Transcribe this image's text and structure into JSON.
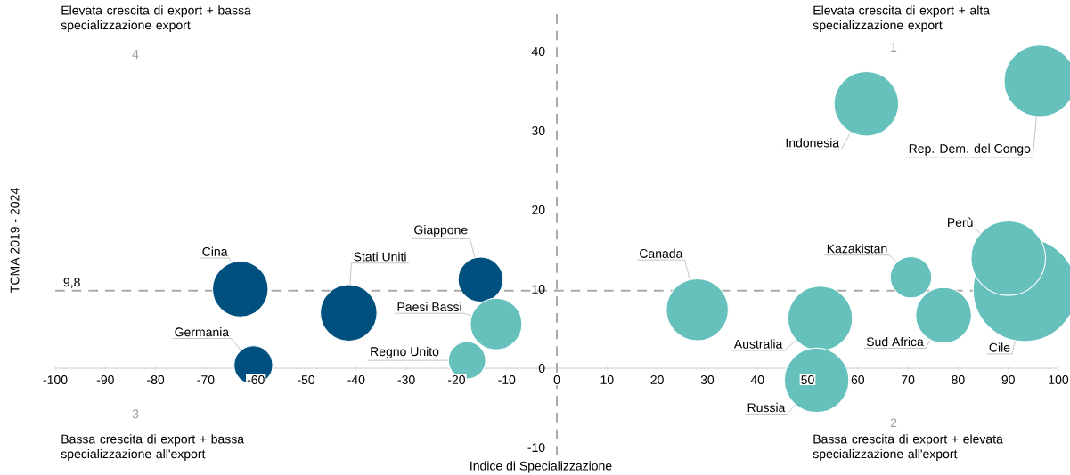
{
  "chart_data": {
    "type": "bubble",
    "xlabel": "Indice di Specializzazione",
    "ylabel": "TCMA 2019 - 2024",
    "xlim": [
      -100,
      100
    ],
    "ylim": [
      -11,
      45
    ],
    "xticks": [
      -100,
      -90,
      -80,
      -70,
      -60,
      -50,
      -40,
      -30,
      -20,
      -10,
      0,
      10,
      20,
      30,
      40,
      50,
      60,
      70,
      80,
      90,
      100
    ],
    "yticks": [
      -10,
      0,
      10,
      20,
      30,
      40
    ],
    "series": [
      {
        "color": "#00507f",
        "x": [
          -63.1,
          -60.5,
          -41.5,
          -15.2
        ],
        "values": [
          10.0,
          0.4,
          7.0,
          11.2
        ],
        "sizes": [
          0.29,
          0.14,
          0.3,
          0.19
        ]
      },
      {
        "color": "#66c0bc",
        "x": [
          -12.1,
          -17.9,
          28,
          52.5,
          51.8,
          70.6,
          77.1,
          93.3,
          90,
          61.7,
          96.3
        ],
        "values": [
          5.6,
          1.0,
          7.4,
          6.3,
          -1.5,
          11.5,
          6.7,
          9.9,
          13.9,
          33.4,
          36.3
        ],
        "sizes": [
          0.25,
          0.13,
          0.36,
          0.39,
          0.39,
          0.16,
          0.29,
          1,
          0.52,
          0.39,
          0.48
        ]
      }
    ],
    "ref_lines": [
      {
        "axis": "y",
        "value": 9.8,
        "label": "9,8",
        "color": "#aaaaaa",
        "line_style": "dashed"
      },
      {
        "axis": "x",
        "value": 0,
        "color": "#aaaaaa",
        "line_style": "dashed"
      }
    ],
    "annotations": [
      "Elevata crescita di export + bassa specializzazione export",
      "4",
      "Elevata crescita di export + alta specializzazione export",
      "1",
      "Bassa crescita di export + bassa specializzazione all'export",
      "3",
      "Bassa crescita di export + elevata specializzazione all'export",
      "2",
      {
        "text": "Cina",
        "x": -63.1,
        "y": 10.0
      },
      {
        "text": "Germania",
        "x": -60.5,
        "y": 0.4
      },
      {
        "text": "Stati Uniti",
        "x": -41.5,
        "y": 7.0
      },
      {
        "text": "Giappone",
        "x": -15.2,
        "y": 11.2
      },
      {
        "text": "Paesi Bassi",
        "x": -12.1,
        "y": 5.6
      },
      {
        "text": "Regno Unito",
        "x": -17.9,
        "y": 1.0
      },
      {
        "text": "Canada",
        "x": 28,
        "y": 7.4
      },
      {
        "text": "Australia",
        "x": 52.5,
        "y": 6.3
      },
      {
        "text": "Russia",
        "x": 51.8,
        "y": -1.5
      },
      {
        "text": "Kazakistan",
        "x": 70.6,
        "y": 11.5
      },
      {
        "text": "Sud Africa",
        "x": 77.1,
        "y": 6.7
      },
      {
        "text": "Cile",
        "x": 93.3,
        "y": 9.9
      },
      {
        "text": "Perù",
        "x": 90,
        "y": 13.9
      },
      {
        "text": "Indonesia",
        "x": 61.7,
        "y": 33.4
      },
      {
        "text": "Rep. Dem. del Congo",
        "x": 96.3,
        "y": 36.3
      }
    ]
  }
}
